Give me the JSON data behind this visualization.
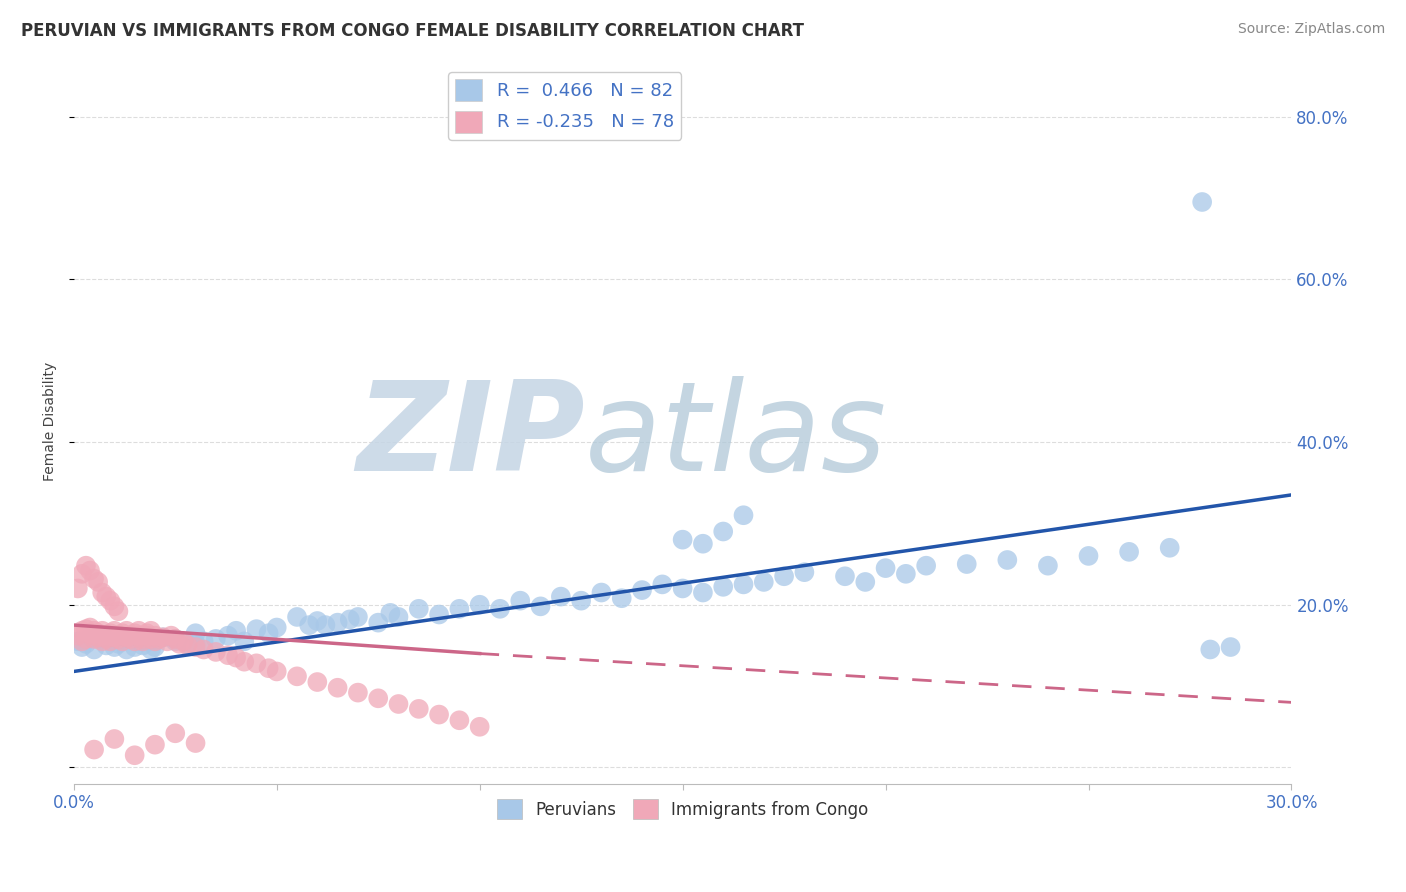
{
  "title": "PERUVIAN VS IMMIGRANTS FROM CONGO FEMALE DISABILITY CORRELATION CHART",
  "source_text": "Source: ZipAtlas.com",
  "ylabel": "Female Disability",
  "xlim": [
    0.0,
    0.3
  ],
  "ylim": [
    -0.02,
    0.87
  ],
  "blue_R": 0.466,
  "blue_N": 82,
  "pink_R": -0.235,
  "pink_N": 78,
  "blue_color": "#a8c8e8",
  "pink_color": "#f0a8b8",
  "blue_line_color": "#2255aa",
  "pink_line_color": "#cc6688",
  "watermark_zip_color": "#c8d4e4",
  "watermark_atlas_color": "#b8ccd8",
  "grid_color": "#dddddd",
  "tick_color": "#4472c4",
  "figsize": [
    14.06,
    8.92
  ],
  "dpi": 100,
  "blue_scatter_x": [
    0.001,
    0.002,
    0.003,
    0.004,
    0.005,
    0.006,
    0.007,
    0.008,
    0.009,
    0.01,
    0.011,
    0.012,
    0.013,
    0.014,
    0.015,
    0.016,
    0.017,
    0.018,
    0.019,
    0.02,
    0.022,
    0.025,
    0.028,
    0.03,
    0.032,
    0.035,
    0.038,
    0.04,
    0.042,
    0.045,
    0.048,
    0.05,
    0.055,
    0.058,
    0.06,
    0.062,
    0.065,
    0.068,
    0.07,
    0.075,
    0.078,
    0.08,
    0.085,
    0.09,
    0.095,
    0.1,
    0.105,
    0.11,
    0.115,
    0.12,
    0.125,
    0.13,
    0.135,
    0.14,
    0.145,
    0.15,
    0.155,
    0.16,
    0.165,
    0.17,
    0.175,
    0.18,
    0.19,
    0.195,
    0.2,
    0.205,
    0.21,
    0.22,
    0.23,
    0.24,
    0.25,
    0.26,
    0.27,
    0.15,
    0.155,
    0.16,
    0.165,
    0.02,
    0.025,
    0.03,
    0.28,
    0.285
  ],
  "blue_scatter_y": [
    0.155,
    0.148,
    0.152,
    0.16,
    0.145,
    0.158,
    0.162,
    0.15,
    0.155,
    0.148,
    0.152,
    0.158,
    0.145,
    0.16,
    0.148,
    0.155,
    0.15,
    0.162,
    0.145,
    0.155,
    0.16,
    0.158,
    0.152,
    0.165,
    0.155,
    0.158,
    0.162,
    0.168,
    0.155,
    0.17,
    0.165,
    0.172,
    0.185,
    0.175,
    0.18,
    0.175,
    0.178,
    0.182,
    0.185,
    0.178,
    0.19,
    0.185,
    0.195,
    0.188,
    0.195,
    0.2,
    0.195,
    0.205,
    0.198,
    0.21,
    0.205,
    0.215,
    0.208,
    0.218,
    0.225,
    0.22,
    0.215,
    0.222,
    0.225,
    0.228,
    0.235,
    0.24,
    0.235,
    0.228,
    0.245,
    0.238,
    0.248,
    0.25,
    0.255,
    0.248,
    0.26,
    0.265,
    0.27,
    0.28,
    0.275,
    0.29,
    0.31,
    0.148,
    0.155,
    0.152,
    0.145,
    0.148
  ],
  "pink_scatter_x": [
    0.001,
    0.002,
    0.002,
    0.003,
    0.003,
    0.004,
    0.004,
    0.005,
    0.005,
    0.006,
    0.006,
    0.007,
    0.007,
    0.008,
    0.008,
    0.009,
    0.009,
    0.01,
    0.01,
    0.011,
    0.011,
    0.012,
    0.012,
    0.013,
    0.013,
    0.014,
    0.014,
    0.015,
    0.015,
    0.016,
    0.016,
    0.017,
    0.017,
    0.018,
    0.018,
    0.019,
    0.019,
    0.02,
    0.02,
    0.021,
    0.022,
    0.023,
    0.024,
    0.025,
    0.026,
    0.027,
    0.028,
    0.03,
    0.032,
    0.035,
    0.038,
    0.04,
    0.042,
    0.045,
    0.048,
    0.05,
    0.055,
    0.06,
    0.065,
    0.07,
    0.075,
    0.08,
    0.085,
    0.09,
    0.095,
    0.1,
    0.001,
    0.002,
    0.003,
    0.004,
    0.005,
    0.006,
    0.007,
    0.008,
    0.009,
    0.01,
    0.011
  ],
  "pink_scatter_y": [
    0.162,
    0.168,
    0.155,
    0.17,
    0.158,
    0.165,
    0.172,
    0.158,
    0.168,
    0.16,
    0.165,
    0.155,
    0.168,
    0.162,
    0.158,
    0.165,
    0.155,
    0.168,
    0.16,
    0.162,
    0.158,
    0.165,
    0.155,
    0.168,
    0.16,
    0.162,
    0.158,
    0.165,
    0.155,
    0.162,
    0.168,
    0.158,
    0.155,
    0.162,
    0.165,
    0.158,
    0.168,
    0.155,
    0.162,
    0.158,
    0.16,
    0.155,
    0.162,
    0.158,
    0.152,
    0.155,
    0.15,
    0.148,
    0.145,
    0.142,
    0.138,
    0.135,
    0.13,
    0.128,
    0.122,
    0.118,
    0.112,
    0.105,
    0.098,
    0.092,
    0.085,
    0.078,
    0.072,
    0.065,
    0.058,
    0.05,
    0.22,
    0.238,
    0.248,
    0.242,
    0.232,
    0.228,
    0.215,
    0.21,
    0.205,
    0.198,
    0.192
  ],
  "blue_outlier_x": [
    0.278
  ],
  "blue_outlier_y": [
    0.695
  ],
  "pink_low_x": [
    0.005,
    0.01,
    0.015,
    0.02,
    0.025,
    0.03
  ],
  "pink_low_y": [
    0.022,
    0.035,
    0.015,
    0.028,
    0.042,
    0.03
  ],
  "blue_trend_x": [
    0.0,
    0.3
  ],
  "blue_trend_y": [
    0.118,
    0.335
  ],
  "pink_trend_x": [
    0.0,
    0.3
  ],
  "pink_trend_y": [
    0.175,
    0.065
  ]
}
